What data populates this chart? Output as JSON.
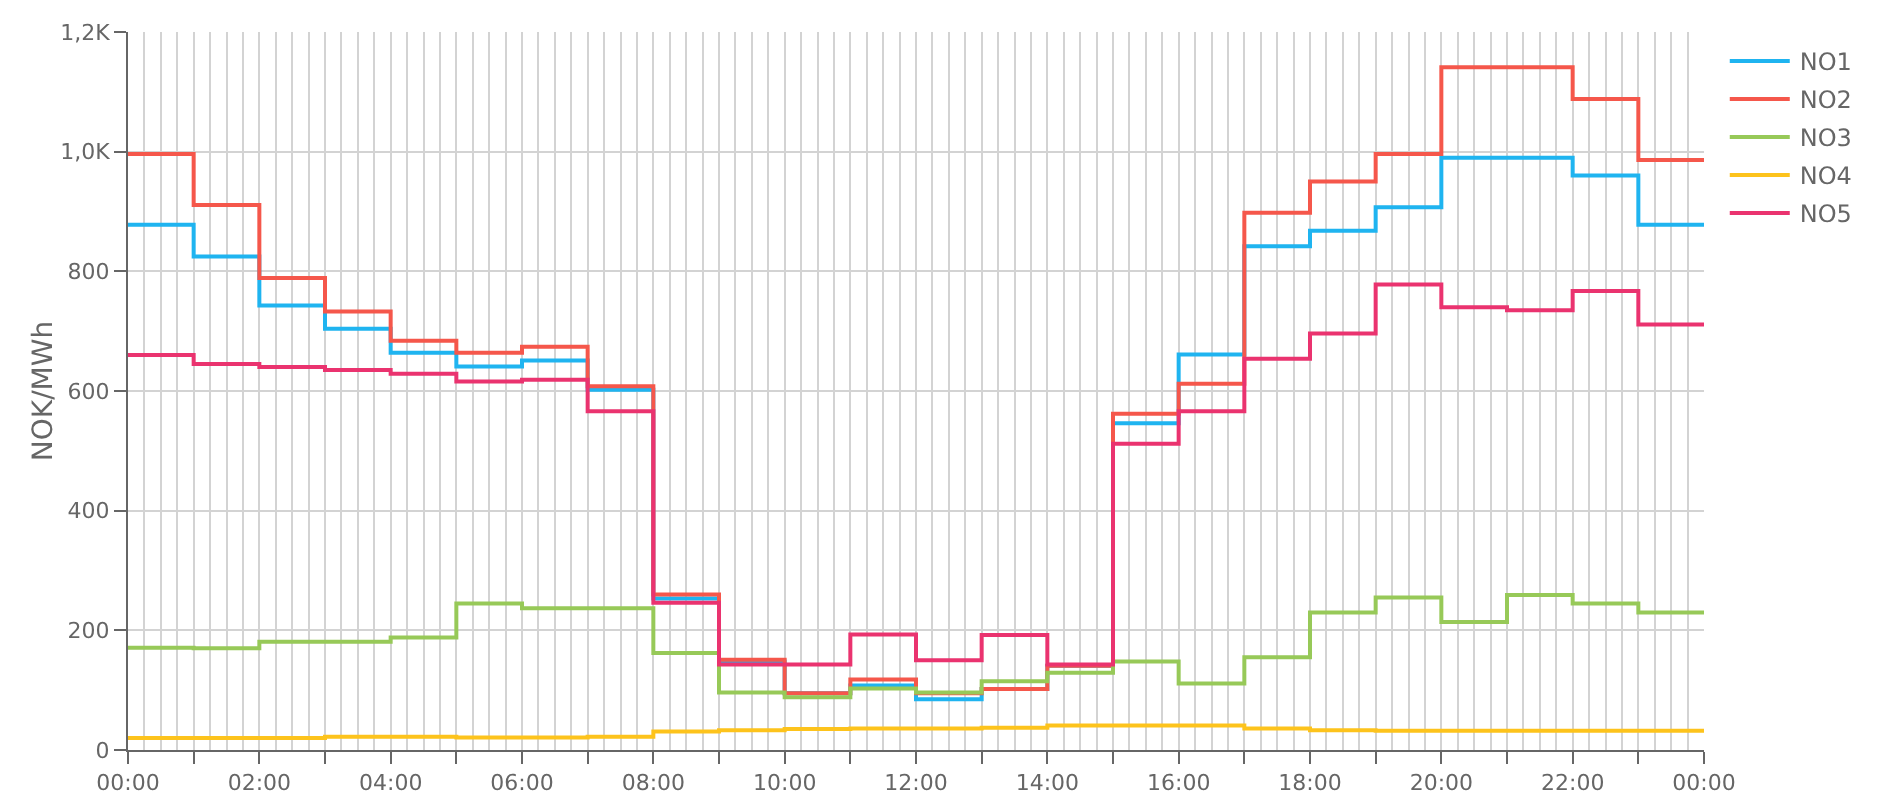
{
  "chart_data": {
    "type": "step",
    "ylabel": "NOK/MWh",
    "x": [
      0,
      1,
      2,
      3,
      4,
      5,
      6,
      7,
      8,
      9,
      10,
      11,
      12,
      13,
      14,
      15,
      16,
      17,
      18,
      19,
      20,
      21,
      22,
      23,
      24
    ],
    "series": [
      {
        "name": "NO1",
        "color": "#1fb4f0",
        "values": [
          878,
          825,
          743,
          704,
          664,
          641,
          651,
          602,
          253,
          148,
          95,
          108,
          85,
          102,
          141,
          546,
          661,
          842,
          868,
          907,
          990,
          990,
          960,
          878,
          878
        ]
      },
      {
        "name": "NO2",
        "color": "#f5574b",
        "values": [
          996,
          911,
          789,
          733,
          684,
          664,
          674,
          608,
          260,
          151,
          95,
          118,
          95,
          102,
          141,
          562,
          612,
          898,
          950,
          996,
          1141,
          1141,
          1088,
          986,
          986
        ]
      },
      {
        "name": "NO3",
        "color": "#97c958",
        "values": [
          171,
          170,
          181,
          181,
          188,
          245,
          237,
          237,
          162,
          96,
          88,
          103,
          96,
          115,
          129,
          148,
          111,
          155,
          230,
          255,
          214,
          259,
          245,
          230,
          230
        ]
      },
      {
        "name": "NO4",
        "color": "#fdc31c",
        "values": [
          20,
          20,
          20,
          22,
          22,
          21,
          21,
          22,
          31,
          33,
          35,
          36,
          36,
          37,
          41,
          41,
          41,
          36,
          33,
          32,
          32,
          32,
          32,
          32,
          32
        ]
      },
      {
        "name": "NO5",
        "color": "#ea336f",
        "values": [
          660,
          645,
          640,
          635,
          629,
          616,
          619,
          566,
          246,
          143,
          143,
          193,
          150,
          192,
          143,
          512,
          566,
          654,
          696,
          778,
          740,
          735,
          767,
          711,
          711
        ]
      }
    ],
    "xlim": [
      0,
      24
    ],
    "xticks": [
      {
        "value": 0,
        "label": "00:00"
      },
      {
        "value": 1,
        "label": null
      },
      {
        "value": 2,
        "label": "02:00"
      },
      {
        "value": 3,
        "label": null
      },
      {
        "value": 4,
        "label": "04:00"
      },
      {
        "value": 5,
        "label": null
      },
      {
        "value": 6,
        "label": "06:00"
      },
      {
        "value": 7,
        "label": null
      },
      {
        "value": 8,
        "label": "08:00"
      },
      {
        "value": 9,
        "label": null
      },
      {
        "value": 10,
        "label": "10:00"
      },
      {
        "value": 11,
        "label": null
      },
      {
        "value": 12,
        "label": "12:00"
      },
      {
        "value": 13,
        "label": null
      },
      {
        "value": 14,
        "label": "14:00"
      },
      {
        "value": 15,
        "label": null
      },
      {
        "value": 16,
        "label": "16:00"
      },
      {
        "value": 17,
        "label": null
      },
      {
        "value": 18,
        "label": "18:00"
      },
      {
        "value": 19,
        "label": null
      },
      {
        "value": 20,
        "label": "20:00"
      },
      {
        "value": 21,
        "label": null
      },
      {
        "value": 22,
        "label": "22:00"
      },
      {
        "value": 23,
        "label": null
      },
      {
        "value": 24,
        "label": "00:00"
      }
    ],
    "ylim": [
      0,
      1200
    ],
    "yticks": [
      0,
      200,
      400,
      600,
      800,
      {
        "value": 1000,
        "label": "1,0K"
      },
      {
        "value": 1200,
        "label": "1,2K"
      }
    ],
    "grid": true,
    "legend": "top right",
    "marker": "none",
    "line_style": "solid"
  }
}
